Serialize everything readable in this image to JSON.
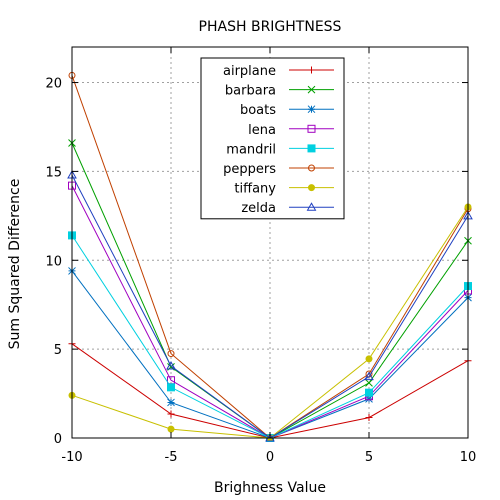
{
  "chart_data": {
    "type": "line",
    "title": "PHASH BRIGHTNESS",
    "xlabel": "Brighness Value",
    "ylabel": "Sum Squared Difference",
    "xlim": [
      -10,
      10
    ],
    "ylim": [
      0,
      22
    ],
    "xticks": [
      -10,
      -5,
      0,
      5,
      10
    ],
    "yticks": [
      0,
      5,
      10,
      15,
      20
    ],
    "grid": true,
    "legend_position": "top-center",
    "x": [
      -10,
      -5,
      0,
      5,
      10
    ],
    "series": [
      {
        "name": "airplane",
        "color": "#cc0000",
        "marker": "plus",
        "values": [
          5.3,
          1.35,
          0,
          1.15,
          4.35
        ]
      },
      {
        "name": "barbara",
        "color": "#00a000",
        "marker": "x",
        "values": [
          16.6,
          4.0,
          0,
          3.1,
          11.1
        ]
      },
      {
        "name": "boats",
        "color": "#0070c0",
        "marker": "star",
        "values": [
          9.4,
          2.0,
          0,
          2.2,
          7.9
        ]
      },
      {
        "name": "lena",
        "color": "#a000c0",
        "marker": "square",
        "values": [
          14.2,
          3.25,
          0,
          2.35,
          8.3
        ]
      },
      {
        "name": "mandril",
        "color": "#00d0e0",
        "marker": "filled-square",
        "values": [
          11.4,
          2.85,
          0,
          2.55,
          8.55
        ]
      },
      {
        "name": "peppers",
        "color": "#c04000",
        "marker": "circle",
        "values": [
          20.4,
          4.75,
          0,
          3.6,
          12.9
        ]
      },
      {
        "name": "tiffany",
        "color": "#c8c000",
        "marker": "filled-circle",
        "values": [
          2.4,
          0.5,
          0,
          4.45,
          13.0
        ]
      },
      {
        "name": "zelda",
        "color": "#2040c0",
        "marker": "triangle",
        "values": [
          14.8,
          4.05,
          0,
          3.45,
          12.5
        ]
      }
    ]
  }
}
